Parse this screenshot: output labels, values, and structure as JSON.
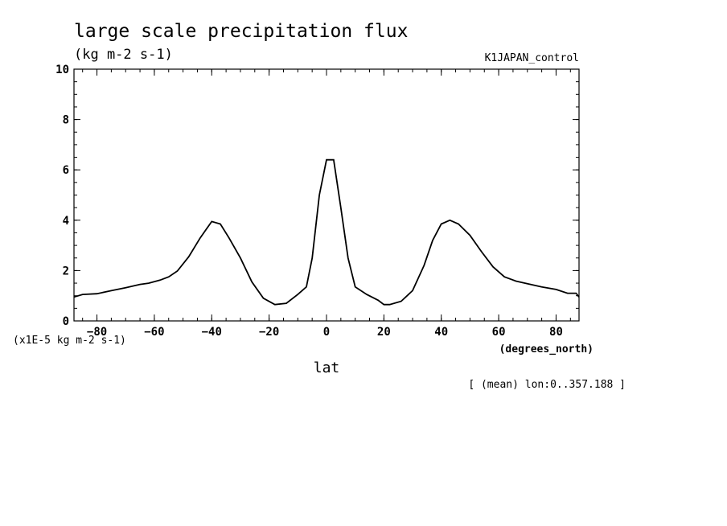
{
  "chart_data": {
    "type": "line",
    "title": "large scale precipitation flux",
    "units": "(kg m-2 s-1)",
    "run_label": "K1JAPAN_control",
    "scale_label": "(x1E-5 kg m-2 s-1)",
    "xlabel": "lat",
    "x_units": "(degrees_north)",
    "footnote": "[ (mean) lon:0..357.188 ]",
    "xlim": [
      -88,
      88
    ],
    "ylim": [
      0,
      10
    ],
    "x_ticks": [
      -80,
      -60,
      -40,
      -20,
      0,
      20,
      40,
      60,
      80
    ],
    "y_ticks": [
      0,
      2,
      4,
      6,
      8,
      10
    ],
    "grid": false,
    "line_color": "#000000",
    "series": [
      {
        "x": [
          -88,
          -85,
          -80,
          -75,
          -70,
          -65,
          -62,
          -58,
          -55,
          -52,
          -48,
          -44,
          -40,
          -37,
          -34,
          -30,
          -26,
          -22,
          -18,
          -14,
          -10,
          -7,
          -5,
          -2.5,
          0,
          2.5,
          5,
          7.5,
          10,
          14,
          18,
          20,
          22,
          26,
          30,
          34,
          37,
          40,
          43,
          46,
          50,
          54,
          58,
          62,
          66,
          70,
          75,
          80,
          84,
          87,
          88
        ],
        "y": [
          0.95,
          1.05,
          1.08,
          1.2,
          1.32,
          1.45,
          1.5,
          1.62,
          1.75,
          1.98,
          2.55,
          3.3,
          3.95,
          3.85,
          3.3,
          2.5,
          1.55,
          0.9,
          0.65,
          0.7,
          1.05,
          1.35,
          2.5,
          5.0,
          6.4,
          6.4,
          4.5,
          2.5,
          1.35,
          1.05,
          0.82,
          0.65,
          0.65,
          0.78,
          1.2,
          2.2,
          3.2,
          3.85,
          4.0,
          3.85,
          3.4,
          2.75,
          2.15,
          1.75,
          1.58,
          1.48,
          1.35,
          1.25,
          1.1,
          1.1,
          0.95
        ]
      }
    ]
  }
}
